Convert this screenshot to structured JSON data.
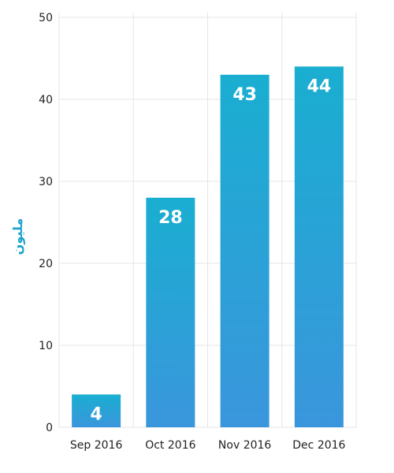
{
  "chart_data": {
    "type": "bar",
    "categories": [
      "Sep 2016",
      "Oct 2016",
      "Nov 2016",
      "Dec 2016"
    ],
    "values": [
      4,
      28,
      43,
      44
    ],
    "data_labels": [
      "4",
      "28",
      "43",
      "44"
    ],
    "title": "",
    "xlabel": "",
    "ylabel": "مليون",
    "ylim": [
      0,
      50
    ],
    "yticks": [
      0,
      10,
      20,
      30,
      40,
      50
    ],
    "ytick_labels": [
      "0",
      "10",
      "20",
      "30",
      "40",
      "50"
    ],
    "grid": true,
    "legend": "none",
    "colors": {
      "bar_top": "#1aaed1",
      "bar_bottom": "#3a96dc",
      "gridline": "#e6e6e6",
      "axis_label": "#1aa3cc",
      "tick_text": "#222222"
    }
  }
}
